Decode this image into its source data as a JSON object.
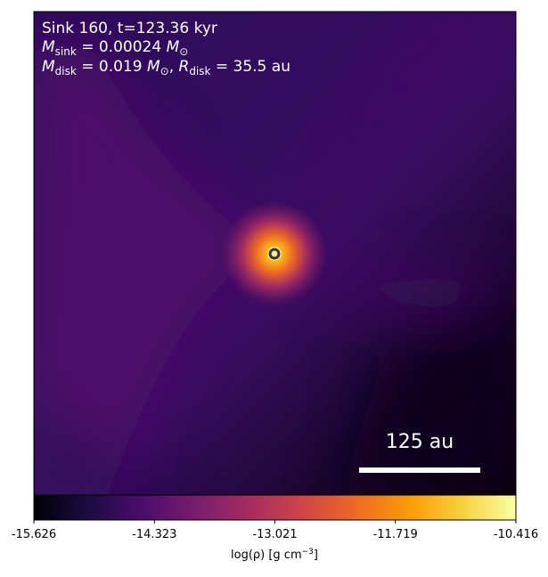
{
  "chart_data": {
    "type": "image",
    "annotation_lines": [
      [
        "Sink 160, t=123.36 kyr"
      ],
      [
        "M",
        "sink",
        " = 0.00024 ",
        "M",
        "⊙"
      ],
      [
        "M",
        "disk",
        " = 0.019 ",
        "M",
        "⊙",
        ", ",
        "R",
        "disk",
        " = 35.5 au"
      ]
    ],
    "scale_bar_label": "125 au",
    "colorbar_label": [
      "log(ρ) [g cm",
      "−3",
      "]"
    ],
    "clim": [
      -15.626,
      -10.416
    ],
    "cticks": [
      -15.626,
      -14.323,
      -13.021,
      -11.719,
      -10.416
    ],
    "colormap": [
      "#000004",
      "#1b0c41",
      "#4a0c6b",
      "#781c6d",
      "#a52c60",
      "#cf4446",
      "#ed6925",
      "#fb9b06",
      "#f7d13d",
      "#fcffa4"
    ]
  }
}
